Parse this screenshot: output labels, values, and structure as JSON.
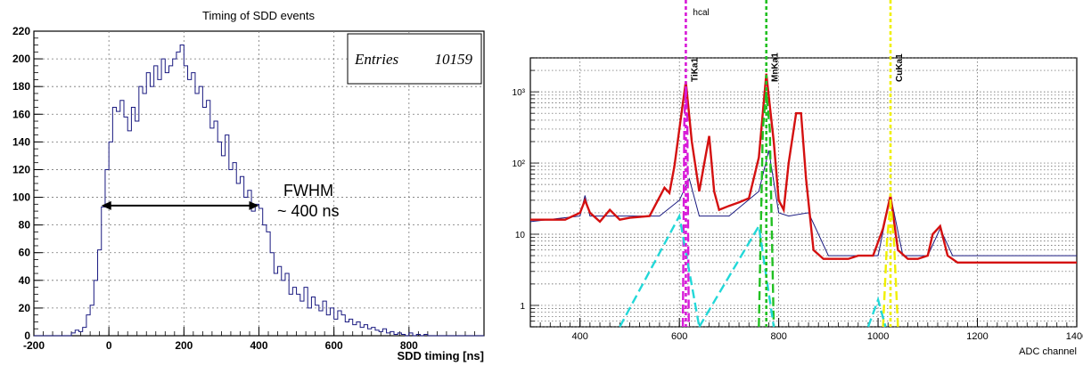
{
  "chart_data": [
    {
      "type": "line",
      "title": "Timing of SDD events",
      "xlabel": "SDD timing [ns]",
      "ylabel": "",
      "xlim": [
        -200,
        1000
      ],
      "ylim": [
        0,
        220
      ],
      "grid": true,
      "x_ticks": [
        -200,
        0,
        200,
        400,
        600,
        800
      ],
      "y_ticks": [
        0,
        20,
        40,
        60,
        80,
        100,
        120,
        140,
        160,
        180,
        200,
        220
      ],
      "stats_box": {
        "label": "Entries",
        "value": "10159"
      },
      "annotation": {
        "line1": "FWHM",
        "line2": "~ 400 ns",
        "x_from": -20,
        "x_to": 400,
        "y": 94
      },
      "series": [
        {
          "color": "#1a1a80",
          "x": [
            -200,
            -110,
            -100,
            -90,
            -80,
            -70,
            -60,
            -50,
            -40,
            -30,
            -20,
            -10,
            0,
            10,
            20,
            30,
            40,
            50,
            60,
            70,
            80,
            90,
            100,
            110,
            120,
            130,
            140,
            150,
            160,
            170,
            180,
            190,
            200,
            210,
            220,
            230,
            240,
            250,
            260,
            270,
            280,
            290,
            300,
            310,
            320,
            330,
            340,
            350,
            360,
            370,
            380,
            390,
            400,
            410,
            420,
            430,
            440,
            450,
            460,
            470,
            480,
            490,
            500,
            510,
            520,
            530,
            540,
            550,
            560,
            570,
            580,
            590,
            600,
            610,
            620,
            630,
            640,
            650,
            660,
            670,
            680,
            690,
            700,
            710,
            720,
            730,
            740,
            750,
            760,
            770,
            780,
            790,
            800,
            810,
            820,
            830,
            840,
            850,
            860,
            1000
          ],
          "y": [
            0,
            0,
            2,
            4,
            3,
            6,
            15,
            22,
            40,
            62,
            93,
            120,
            140,
            165,
            162,
            170,
            158,
            148,
            165,
            155,
            180,
            175,
            190,
            180,
            195,
            185,
            200,
            190,
            195,
            200,
            205,
            210,
            195,
            185,
            190,
            175,
            180,
            165,
            170,
            150,
            155,
            140,
            130,
            145,
            120,
            125,
            110,
            115,
            100,
            105,
            90,
            95,
            92,
            80,
            75,
            60,
            45,
            50,
            40,
            45,
            30,
            35,
            30,
            25,
            35,
            20,
            28,
            22,
            18,
            25,
            15,
            20,
            12,
            18,
            15,
            10,
            12,
            8,
            10,
            6,
            8,
            5,
            6,
            4,
            3,
            5,
            2,
            3,
            1,
            2,
            1,
            0,
            2,
            0,
            1,
            0,
            1,
            0,
            0,
            0
          ]
        }
      ]
    },
    {
      "type": "line",
      "title": "",
      "xlabel": "ADC channel",
      "ylabel": "",
      "xlim": [
        300,
        1400
      ],
      "ylim": [
        0.5,
        3000
      ],
      "yscale": "log",
      "grid": true,
      "x_ticks": [
        400,
        600,
        800,
        1000,
        1200,
        1400
      ],
      "y_ticks": [
        "1",
        "10",
        "10²",
        "10³"
      ],
      "lines": [
        {
          "label": "hcal",
          "x": 613,
          "color": "#d81ad8"
        },
        {
          "label": "TiKa1",
          "x": 613,
          "color": "#d81ad8"
        },
        {
          "label": "MnKa1",
          "x": 775,
          "color": "#22c022"
        },
        {
          "label": "CuKa1",
          "x": 1025,
          "color": "#f0f000"
        }
      ],
      "series": [
        {
          "color": "#d41010",
          "x": [
            300,
            370,
            400,
            410,
            420,
            440,
            460,
            480,
            500,
            540,
            570,
            580,
            590,
            600,
            613,
            625,
            640,
            660,
            670,
            680,
            700,
            720,
            740,
            760,
            775,
            790,
            800,
            810,
            820,
            835,
            845,
            855,
            870,
            890,
            900,
            940,
            960,
            990,
            1010,
            1025,
            1040,
            1060,
            1080,
            1100,
            1110,
            1125,
            1140,
            1160,
            1200,
            1250,
            1300,
            1350,
            1400
          ],
          "y": [
            16,
            16,
            20,
            30,
            20,
            15,
            22,
            16,
            17,
            18,
            45,
            38,
            90,
            300,
            1400,
            200,
            40,
            240,
            40,
            22,
            25,
            28,
            32,
            120,
            1800,
            200,
            30,
            22,
            100,
            500,
            500,
            60,
            6,
            4.5,
            4.5,
            4.5,
            5,
            5,
            12,
            35,
            6,
            4.5,
            4.5,
            5,
            10,
            13,
            5,
            4,
            4,
            4,
            4,
            4,
            4
          ]
        },
        {
          "color": "#1a1a80",
          "x": [
            300,
            400,
            410,
            420,
            500,
            560,
            600,
            620,
            640,
            700,
            760,
            780,
            800,
            820,
            860,
            900,
            1000,
            1025,
            1050,
            1100,
            1125,
            1150,
            1200,
            1300,
            1400
          ],
          "y": [
            15,
            18,
            35,
            18,
            18,
            18,
            30,
            60,
            18,
            18,
            40,
            150,
            20,
            18,
            20,
            5,
            5,
            35,
            5,
            5,
            12,
            5,
            5,
            5,
            5
          ]
        },
        {
          "color": "#d81ad8",
          "x": [
            607,
            610,
            613,
            616,
            619
          ],
          "y": [
            0.5,
            400,
            1200,
            400,
            0.5
          ]
        },
        {
          "color": "#22c022",
          "x": [
            760,
            768,
            775,
            782,
            790
          ],
          "y": [
            0.5,
            300,
            1000,
            300,
            0.5
          ]
        },
        {
          "color": "#f0f000",
          "x": [
            1010,
            1018,
            1025,
            1032,
            1040
          ],
          "y": [
            0.5,
            8,
            28,
            8,
            0.5
          ]
        },
        {
          "color": "#22d8d8",
          "x": [
            480,
            600,
            640
          ],
          "y": [
            0.5,
            18,
            0.5
          ]
        },
        {
          "color": "#22d8d8",
          "x": [
            640,
            760,
            790
          ],
          "y": [
            0.5,
            13,
            0.5
          ]
        },
        {
          "color": "#22d8d8",
          "x": [
            980,
            1000,
            1015
          ],
          "y": [
            0.5,
            1.2,
            0.5
          ]
        }
      ]
    }
  ]
}
